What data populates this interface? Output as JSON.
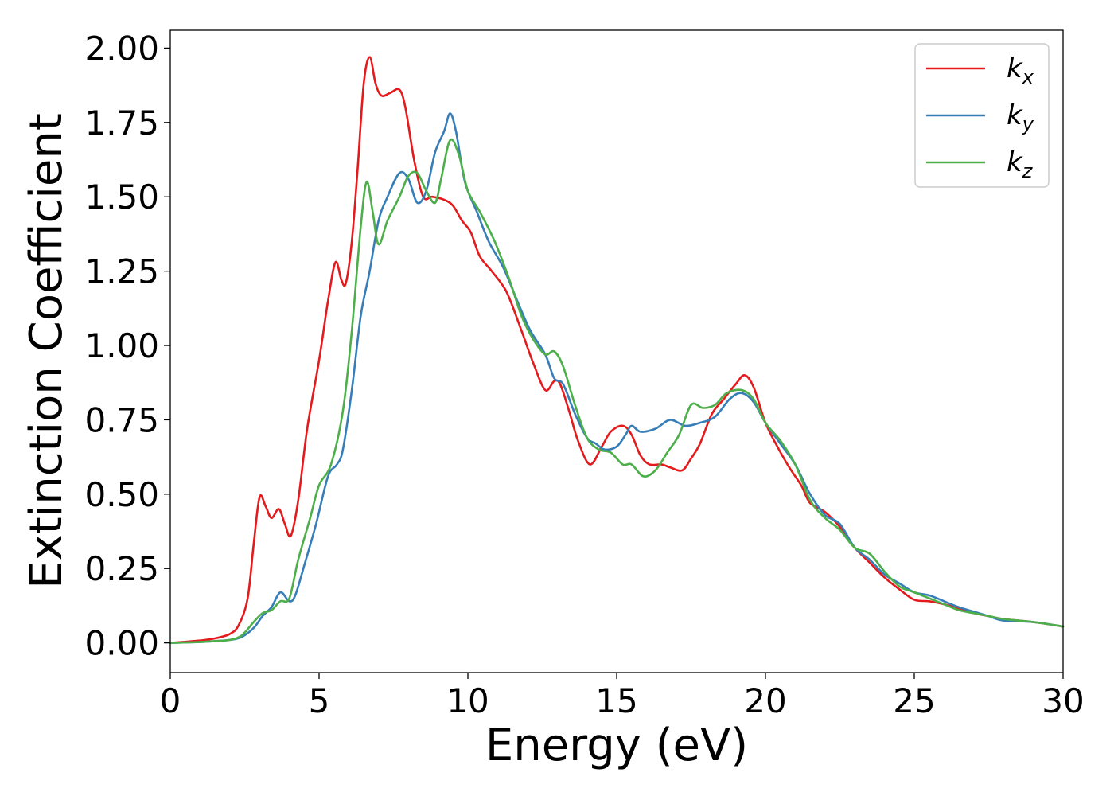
{
  "chart_data": {
    "type": "line",
    "xlabel": "Energy (eV)",
    "ylabel": "Extinction Coefficient",
    "xlim": [
      0,
      30
    ],
    "ylim": [
      -0.1,
      2.06
    ],
    "xticks": [
      0,
      5,
      10,
      15,
      20,
      25,
      30
    ],
    "xtick_labels": [
      "0",
      "5",
      "10",
      "15",
      "20",
      "25",
      "30"
    ],
    "yticks": [
      0,
      0.25,
      0.5,
      0.75,
      1.0,
      1.25,
      1.5,
      1.75,
      2.0
    ],
    "ytick_labels": [
      "0.00",
      "0.25",
      "0.50",
      "0.75",
      "1.00",
      "1.25",
      "1.50",
      "1.75",
      "2.00"
    ],
    "grid": false,
    "legend_position": "top-right",
    "series": [
      {
        "name": "k_x",
        "legend_base": "k",
        "legend_sub": "x",
        "color": "#e41a1c",
        "points": [
          [
            0,
            0
          ],
          [
            1,
            0.008
          ],
          [
            1.5,
            0.015
          ],
          [
            2,
            0.03
          ],
          [
            2.3,
            0.06
          ],
          [
            2.6,
            0.15
          ],
          [
            2.8,
            0.33
          ],
          [
            3.0,
            0.49
          ],
          [
            3.2,
            0.46
          ],
          [
            3.4,
            0.42
          ],
          [
            3.65,
            0.45
          ],
          [
            3.85,
            0.4
          ],
          [
            4.05,
            0.36
          ],
          [
            4.3,
            0.48
          ],
          [
            4.6,
            0.72
          ],
          [
            5.0,
            0.95
          ],
          [
            5.3,
            1.15
          ],
          [
            5.55,
            1.28
          ],
          [
            5.75,
            1.22
          ],
          [
            5.9,
            1.21
          ],
          [
            6.1,
            1.35
          ],
          [
            6.3,
            1.6
          ],
          [
            6.5,
            1.88
          ],
          [
            6.7,
            1.97
          ],
          [
            6.9,
            1.88
          ],
          [
            7.1,
            1.84
          ],
          [
            7.4,
            1.85
          ],
          [
            7.7,
            1.86
          ],
          [
            7.9,
            1.8
          ],
          [
            8.2,
            1.62
          ],
          [
            8.5,
            1.5
          ],
          [
            8.8,
            1.5
          ],
          [
            9.2,
            1.49
          ],
          [
            9.5,
            1.47
          ],
          [
            9.8,
            1.42
          ],
          [
            10.1,
            1.38
          ],
          [
            10.4,
            1.3
          ],
          [
            10.8,
            1.25
          ],
          [
            11.3,
            1.18
          ],
          [
            11.8,
            1.05
          ],
          [
            12.2,
            0.94
          ],
          [
            12.6,
            0.85
          ],
          [
            12.9,
            0.88
          ],
          [
            13.1,
            0.87
          ],
          [
            13.4,
            0.78
          ],
          [
            13.7,
            0.68
          ],
          [
            14.1,
            0.6
          ],
          [
            14.5,
            0.66
          ],
          [
            14.8,
            0.71
          ],
          [
            15.2,
            0.73
          ],
          [
            15.5,
            0.7
          ],
          [
            15.8,
            0.63
          ],
          [
            16.1,
            0.6
          ],
          [
            16.5,
            0.6
          ],
          [
            16.8,
            0.59
          ],
          [
            17.2,
            0.58
          ],
          [
            17.5,
            0.62
          ],
          [
            17.8,
            0.67
          ],
          [
            18.2,
            0.77
          ],
          [
            18.6,
            0.82
          ],
          [
            19.0,
            0.87
          ],
          [
            19.3,
            0.9
          ],
          [
            19.6,
            0.86
          ],
          [
            20.0,
            0.74
          ],
          [
            20.4,
            0.66
          ],
          [
            20.8,
            0.59
          ],
          [
            21.2,
            0.53
          ],
          [
            21.5,
            0.47
          ],
          [
            22.0,
            0.44
          ],
          [
            22.5,
            0.39
          ],
          [
            23.0,
            0.32
          ],
          [
            23.5,
            0.27
          ],
          [
            24.0,
            0.22
          ],
          [
            24.5,
            0.18
          ],
          [
            25.0,
            0.145
          ],
          [
            25.5,
            0.14
          ],
          [
            26.0,
            0.13
          ],
          [
            26.5,
            0.115
          ],
          [
            27.0,
            0.1
          ],
          [
            27.5,
            0.09
          ],
          [
            28.0,
            0.08
          ],
          [
            29.0,
            0.07
          ],
          [
            30.0,
            0.055
          ]
        ]
      },
      {
        "name": "k_y",
        "legend_base": "k",
        "legend_sub": "y",
        "color": "#377eb8",
        "points": [
          [
            0,
            0
          ],
          [
            1,
            0.003
          ],
          [
            1.5,
            0.006
          ],
          [
            2,
            0.01
          ],
          [
            2.4,
            0.02
          ],
          [
            2.8,
            0.05
          ],
          [
            3.1,
            0.09
          ],
          [
            3.4,
            0.12
          ],
          [
            3.7,
            0.17
          ],
          [
            4.0,
            0.14
          ],
          [
            4.2,
            0.16
          ],
          [
            4.5,
            0.26
          ],
          [
            4.9,
            0.4
          ],
          [
            5.3,
            0.56
          ],
          [
            5.6,
            0.6
          ],
          [
            5.8,
            0.65
          ],
          [
            6.1,
            0.85
          ],
          [
            6.4,
            1.1
          ],
          [
            6.7,
            1.25
          ],
          [
            7.0,
            1.42
          ],
          [
            7.3,
            1.5
          ],
          [
            7.7,
            1.58
          ],
          [
            8.0,
            1.56
          ],
          [
            8.3,
            1.48
          ],
          [
            8.6,
            1.52
          ],
          [
            8.9,
            1.65
          ],
          [
            9.2,
            1.72
          ],
          [
            9.4,
            1.78
          ],
          [
            9.6,
            1.72
          ],
          [
            9.9,
            1.55
          ],
          [
            10.3,
            1.45
          ],
          [
            10.7,
            1.35
          ],
          [
            11.2,
            1.26
          ],
          [
            11.7,
            1.14
          ],
          [
            12.1,
            1.05
          ],
          [
            12.6,
            0.97
          ],
          [
            12.9,
            0.89
          ],
          [
            13.2,
            0.87
          ],
          [
            13.6,
            0.77
          ],
          [
            14.0,
            0.69
          ],
          [
            14.3,
            0.67
          ],
          [
            14.6,
            0.65
          ],
          [
            15.0,
            0.66
          ],
          [
            15.3,
            0.7
          ],
          [
            15.5,
            0.73
          ],
          [
            15.8,
            0.71
          ],
          [
            16.3,
            0.72
          ],
          [
            16.8,
            0.75
          ],
          [
            17.3,
            0.73
          ],
          [
            17.8,
            0.74
          ],
          [
            18.3,
            0.76
          ],
          [
            18.8,
            0.82
          ],
          [
            19.2,
            0.84
          ],
          [
            19.6,
            0.81
          ],
          [
            20.0,
            0.74
          ],
          [
            20.5,
            0.67
          ],
          [
            21.0,
            0.6
          ],
          [
            21.5,
            0.5
          ],
          [
            22.0,
            0.43
          ],
          [
            22.5,
            0.4
          ],
          [
            23.0,
            0.32
          ],
          [
            23.5,
            0.28
          ],
          [
            24.0,
            0.23
          ],
          [
            24.5,
            0.2
          ],
          [
            25.0,
            0.17
          ],
          [
            25.5,
            0.16
          ],
          [
            26.0,
            0.14
          ],
          [
            26.5,
            0.12
          ],
          [
            27.0,
            0.105
          ],
          [
            27.5,
            0.09
          ],
          [
            28.0,
            0.075
          ],
          [
            29.0,
            0.07
          ],
          [
            30.0,
            0.055
          ]
        ]
      },
      {
        "name": "k_z",
        "legend_base": "k",
        "legend_sub": "z",
        "color": "#4daf4a",
        "points": [
          [
            0,
            0
          ],
          [
            1,
            0.003
          ],
          [
            1.5,
            0.006
          ],
          [
            2,
            0.01
          ],
          [
            2.4,
            0.025
          ],
          [
            2.8,
            0.07
          ],
          [
            3.1,
            0.1
          ],
          [
            3.4,
            0.11
          ],
          [
            3.7,
            0.14
          ],
          [
            4.0,
            0.15
          ],
          [
            4.3,
            0.28
          ],
          [
            4.7,
            0.42
          ],
          [
            5.0,
            0.53
          ],
          [
            5.4,
            0.6
          ],
          [
            5.8,
            0.78
          ],
          [
            6.1,
            1.05
          ],
          [
            6.4,
            1.4
          ],
          [
            6.6,
            1.55
          ],
          [
            6.8,
            1.45
          ],
          [
            7.0,
            1.34
          ],
          [
            7.3,
            1.42
          ],
          [
            7.7,
            1.5
          ],
          [
            8.0,
            1.57
          ],
          [
            8.3,
            1.58
          ],
          [
            8.6,
            1.52
          ],
          [
            8.9,
            1.48
          ],
          [
            9.1,
            1.56
          ],
          [
            9.4,
            1.69
          ],
          [
            9.7,
            1.64
          ],
          [
            10.0,
            1.52
          ],
          [
            10.4,
            1.45
          ],
          [
            10.9,
            1.35
          ],
          [
            11.4,
            1.22
          ],
          [
            11.8,
            1.1
          ],
          [
            12.2,
            1.02
          ],
          [
            12.6,
            0.97
          ],
          [
            12.9,
            0.98
          ],
          [
            13.2,
            0.93
          ],
          [
            13.6,
            0.8
          ],
          [
            14.0,
            0.69
          ],
          [
            14.4,
            0.65
          ],
          [
            14.8,
            0.64
          ],
          [
            15.2,
            0.6
          ],
          [
            15.5,
            0.6
          ],
          [
            15.9,
            0.56
          ],
          [
            16.3,
            0.58
          ],
          [
            16.7,
            0.64
          ],
          [
            17.1,
            0.7
          ],
          [
            17.5,
            0.8
          ],
          [
            17.9,
            0.79
          ],
          [
            18.3,
            0.8
          ],
          [
            18.7,
            0.84
          ],
          [
            19.2,
            0.85
          ],
          [
            19.6,
            0.82
          ],
          [
            20.0,
            0.74
          ],
          [
            20.5,
            0.68
          ],
          [
            21.0,
            0.6
          ],
          [
            21.5,
            0.48
          ],
          [
            22.0,
            0.42
          ],
          [
            22.5,
            0.38
          ],
          [
            23.0,
            0.32
          ],
          [
            23.5,
            0.3
          ],
          [
            24.0,
            0.24
          ],
          [
            24.5,
            0.19
          ],
          [
            25.0,
            0.17
          ],
          [
            25.5,
            0.15
          ],
          [
            26.0,
            0.13
          ],
          [
            26.5,
            0.11
          ],
          [
            27.0,
            0.1
          ],
          [
            27.5,
            0.09
          ],
          [
            28.0,
            0.08
          ],
          [
            29.0,
            0.07
          ],
          [
            30.0,
            0.055
          ]
        ]
      }
    ]
  }
}
